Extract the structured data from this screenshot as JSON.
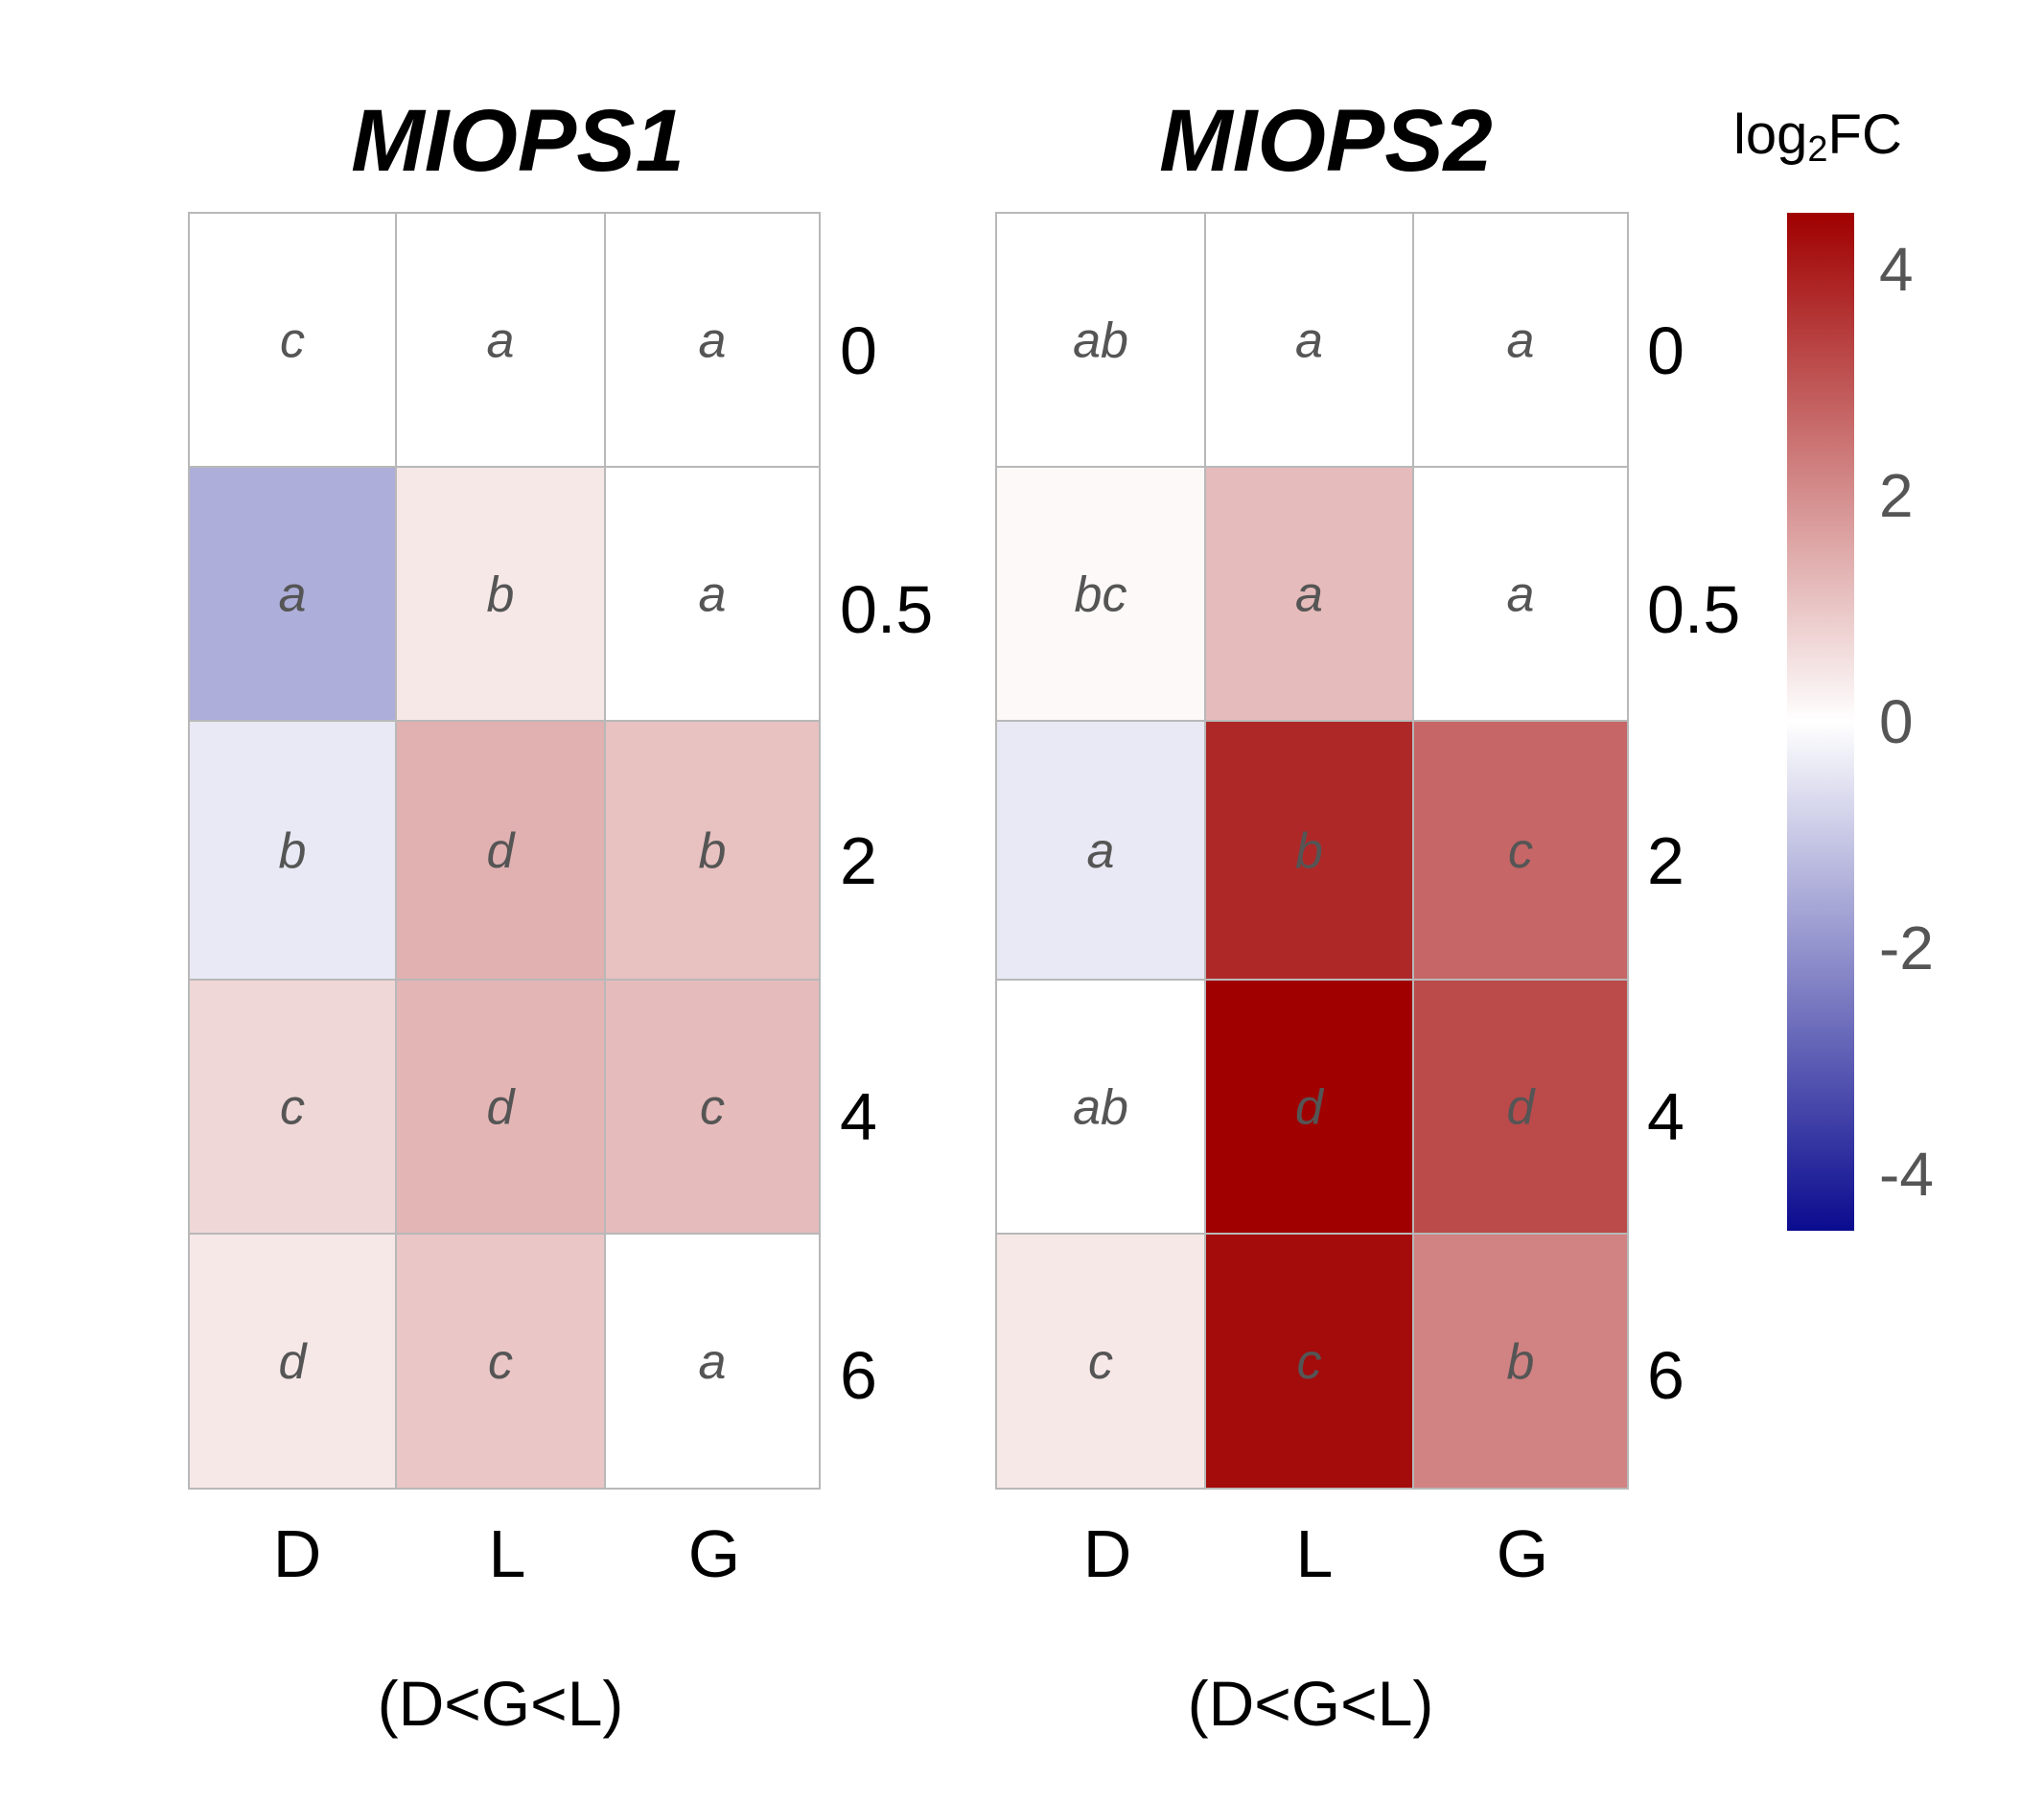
{
  "chart_data": {
    "type": "heatmap",
    "rows": [
      "0",
      "0.5",
      "2",
      "4",
      "6"
    ],
    "columns": [
      "D",
      "L",
      "G"
    ],
    "colorbar": {
      "title_main": "log",
      "title_sub": "2",
      "title_tail": "FC",
      "min": -4.5,
      "max": 4.5,
      "ticks": [
        4,
        2,
        0,
        -2,
        -4
      ],
      "low_color": "#0b0b8f",
      "mid_color": "#ffffff",
      "high_color": "#a00000"
    },
    "panels": [
      {
        "title": "MIOPS1",
        "order_note": "(D<G<L)",
        "values": [
          [
            0.0,
            0.0,
            0.0
          ],
          [
            -1.5,
            0.4,
            0.0
          ],
          [
            -0.4,
            1.4,
            1.1
          ],
          [
            0.7,
            1.3,
            1.2
          ],
          [
            0.4,
            1.0,
            0.0
          ]
        ],
        "letters": [
          [
            "c",
            "a",
            "a"
          ],
          [
            "a",
            "b",
            "a"
          ],
          [
            "b",
            "d",
            "b"
          ],
          [
            "c",
            "d",
            "c"
          ],
          [
            "d",
            "c",
            "a"
          ]
        ]
      },
      {
        "title": "MIOPS2",
        "order_note": "(D<G<L)",
        "values": [
          [
            0.0,
            0.0,
            0.0
          ],
          [
            0.1,
            1.2,
            0.0
          ],
          [
            -0.4,
            3.8,
            2.7
          ],
          [
            0.0,
            4.5,
            3.2
          ],
          [
            0.4,
            4.3,
            2.2
          ]
        ],
        "letters": [
          [
            "ab",
            "a",
            "a"
          ],
          [
            "bc",
            "a",
            "a"
          ],
          [
            "a",
            "b",
            "c"
          ],
          [
            "ab",
            "d",
            "d"
          ],
          [
            "c",
            "c",
            "b"
          ]
        ]
      }
    ]
  }
}
